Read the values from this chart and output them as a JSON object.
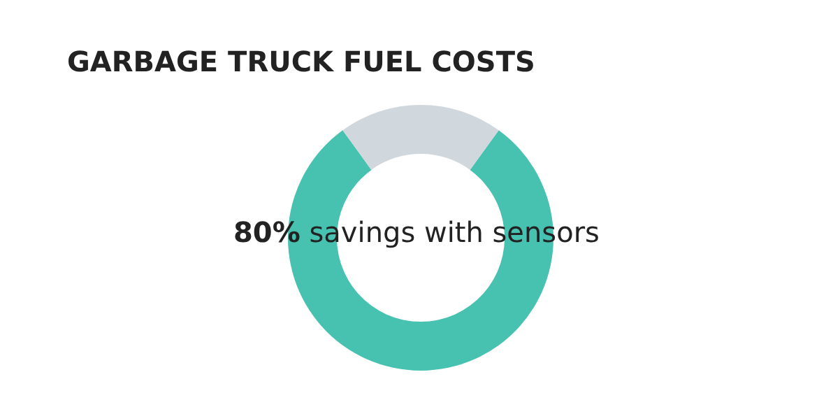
{
  "chart_data": {
    "type": "donut",
    "title": "GARBAGE TRUCK FUEL COSTS",
    "categories": [
      "savings with sensors",
      null
    ],
    "values": [
      80,
      20
    ],
    "colors": [
      "#47c1b0",
      "#d0d8de"
    ],
    "value_labels": [
      "80%",
      null
    ]
  }
}
